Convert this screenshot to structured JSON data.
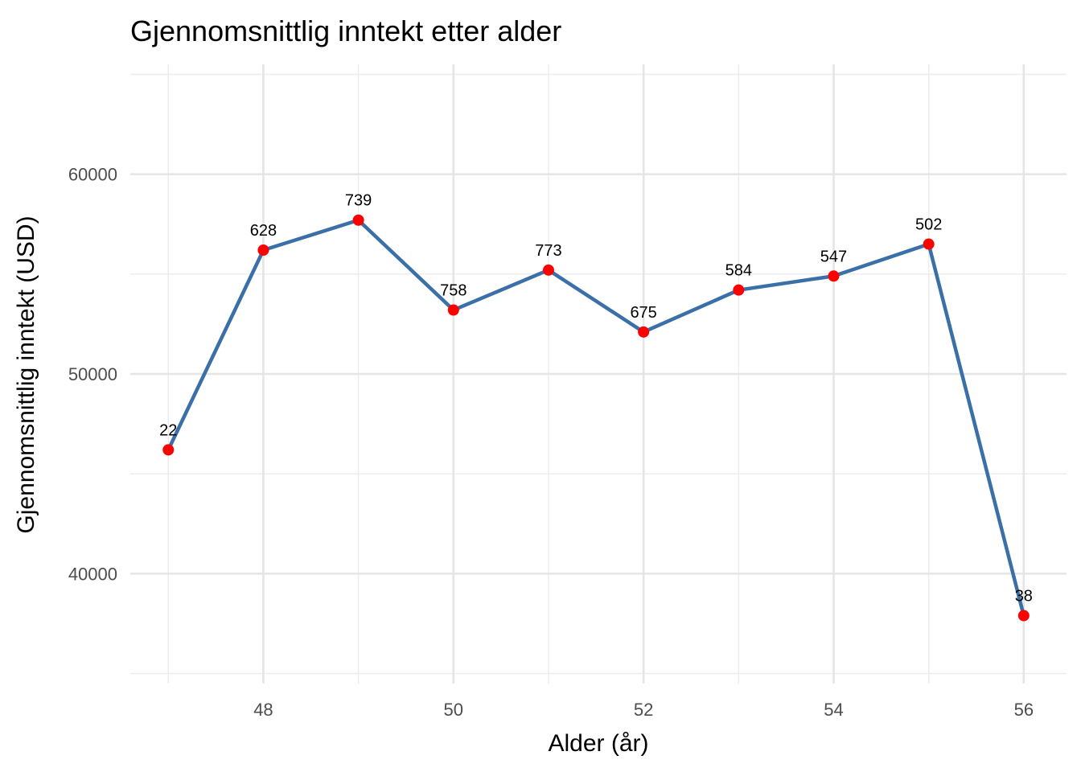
{
  "chart_data": {
    "type": "line",
    "title": "Gjennomsnittlig inntekt etter alder",
    "xlabel": "Alder (år)",
    "ylabel": "Gjennomsnittlig inntekt (USD)",
    "x": [
      47,
      48,
      49,
      50,
      51,
      52,
      53,
      54,
      55,
      56
    ],
    "series": [
      {
        "values": [
          46200,
          56200,
          57700,
          53200,
          55200,
          52100,
          54200,
          54900,
          56500,
          37900
        ],
        "labels": [
          "22",
          "628",
          "739",
          "758",
          "773",
          "675",
          "584",
          "547",
          "502",
          "38"
        ]
      }
    ],
    "xlim": [
      46.6,
      56.45
    ],
    "ylim": [
      34500,
      65500
    ],
    "x_ticks": [
      48,
      50,
      52,
      54,
      56
    ],
    "x_tick_labels": [
      "48",
      "50",
      "52",
      "54",
      "56"
    ],
    "y_ticks": [
      40000,
      50000,
      60000
    ],
    "y_tick_labels": [
      "40000",
      "50000",
      "60000"
    ],
    "grid": true,
    "legend": "none",
    "colors": {
      "line": "#3a6fa8",
      "points": "#ff0000",
      "grid": "#e5e5e5"
    }
  }
}
